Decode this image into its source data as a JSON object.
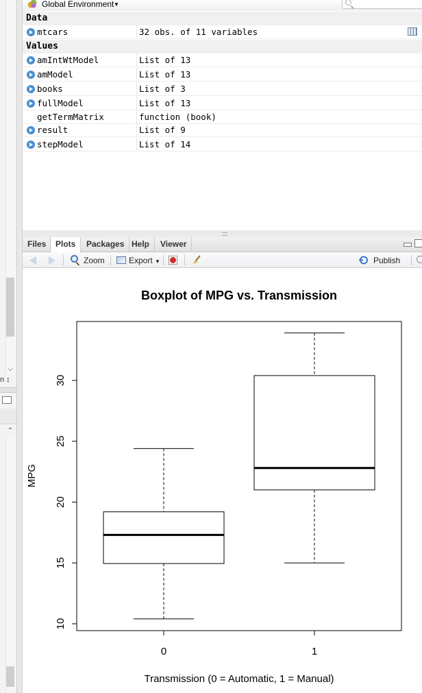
{
  "environment": {
    "scope_label": "Global Environment",
    "search_placeholder": "",
    "sections": [
      {
        "title": "Data",
        "rows": [
          {
            "name": "mtcars",
            "value": "32 obs. of 11 variables",
            "expandable": true,
            "grid": true
          }
        ]
      },
      {
        "title": "Values",
        "rows": [
          {
            "name": "amIntWtModel",
            "value": "List of 13",
            "expandable": true
          },
          {
            "name": "amModel",
            "value": "List of 13",
            "expandable": true
          },
          {
            "name": "books",
            "value": "List of 3",
            "expandable": true
          },
          {
            "name": "fullModel",
            "value": "List of 13",
            "expandable": true
          },
          {
            "name": "getTermMatrix",
            "value": "function (book)",
            "expandable": false
          },
          {
            "name": "result",
            "value": "List of 9",
            "expandable": true
          },
          {
            "name": "stepModel",
            "value": "List of 14",
            "expandable": true
          }
        ]
      }
    ]
  },
  "left_pane": {
    "combo_text": "n"
  },
  "tabs": [
    {
      "label": "Files",
      "active": false
    },
    {
      "label": "Plots",
      "active": true
    },
    {
      "label": "Packages",
      "active": false
    },
    {
      "label": "Help",
      "active": false
    },
    {
      "label": "Viewer",
      "active": false
    }
  ],
  "plot_toolbar": {
    "zoom_label": "Zoom",
    "export_label": "Export",
    "publish_label": "Publish"
  },
  "icons": [
    "environment-icon",
    "search-icon",
    "expand-icon",
    "grid-view-icon",
    "back-arrow-icon",
    "forward-arrow-icon",
    "zoom-icon",
    "export-icon",
    "clear-plot-icon",
    "broom-icon",
    "publish-icon",
    "refresh-icon",
    "minimize-icon",
    "maximize-icon"
  ],
  "chart_data": {
    "type": "boxplot",
    "title": "Boxplot of MPG vs. Transmission",
    "xlabel": "Transmission (0 = Automatic, 1 = Manual)",
    "ylabel": "MPG",
    "categories": [
      "0",
      "1"
    ],
    "yticks": [
      10,
      15,
      20,
      25,
      30
    ],
    "ylim": [
      9.5,
      35
    ],
    "boxes": [
      {
        "category": "0",
        "min": 10.4,
        "q1": 14.95,
        "median": 17.3,
        "q3": 19.2,
        "max": 24.4
      },
      {
        "category": "1",
        "min": 15.0,
        "q1": 21.0,
        "median": 22.8,
        "q3": 30.4,
        "max": 33.9
      }
    ]
  }
}
